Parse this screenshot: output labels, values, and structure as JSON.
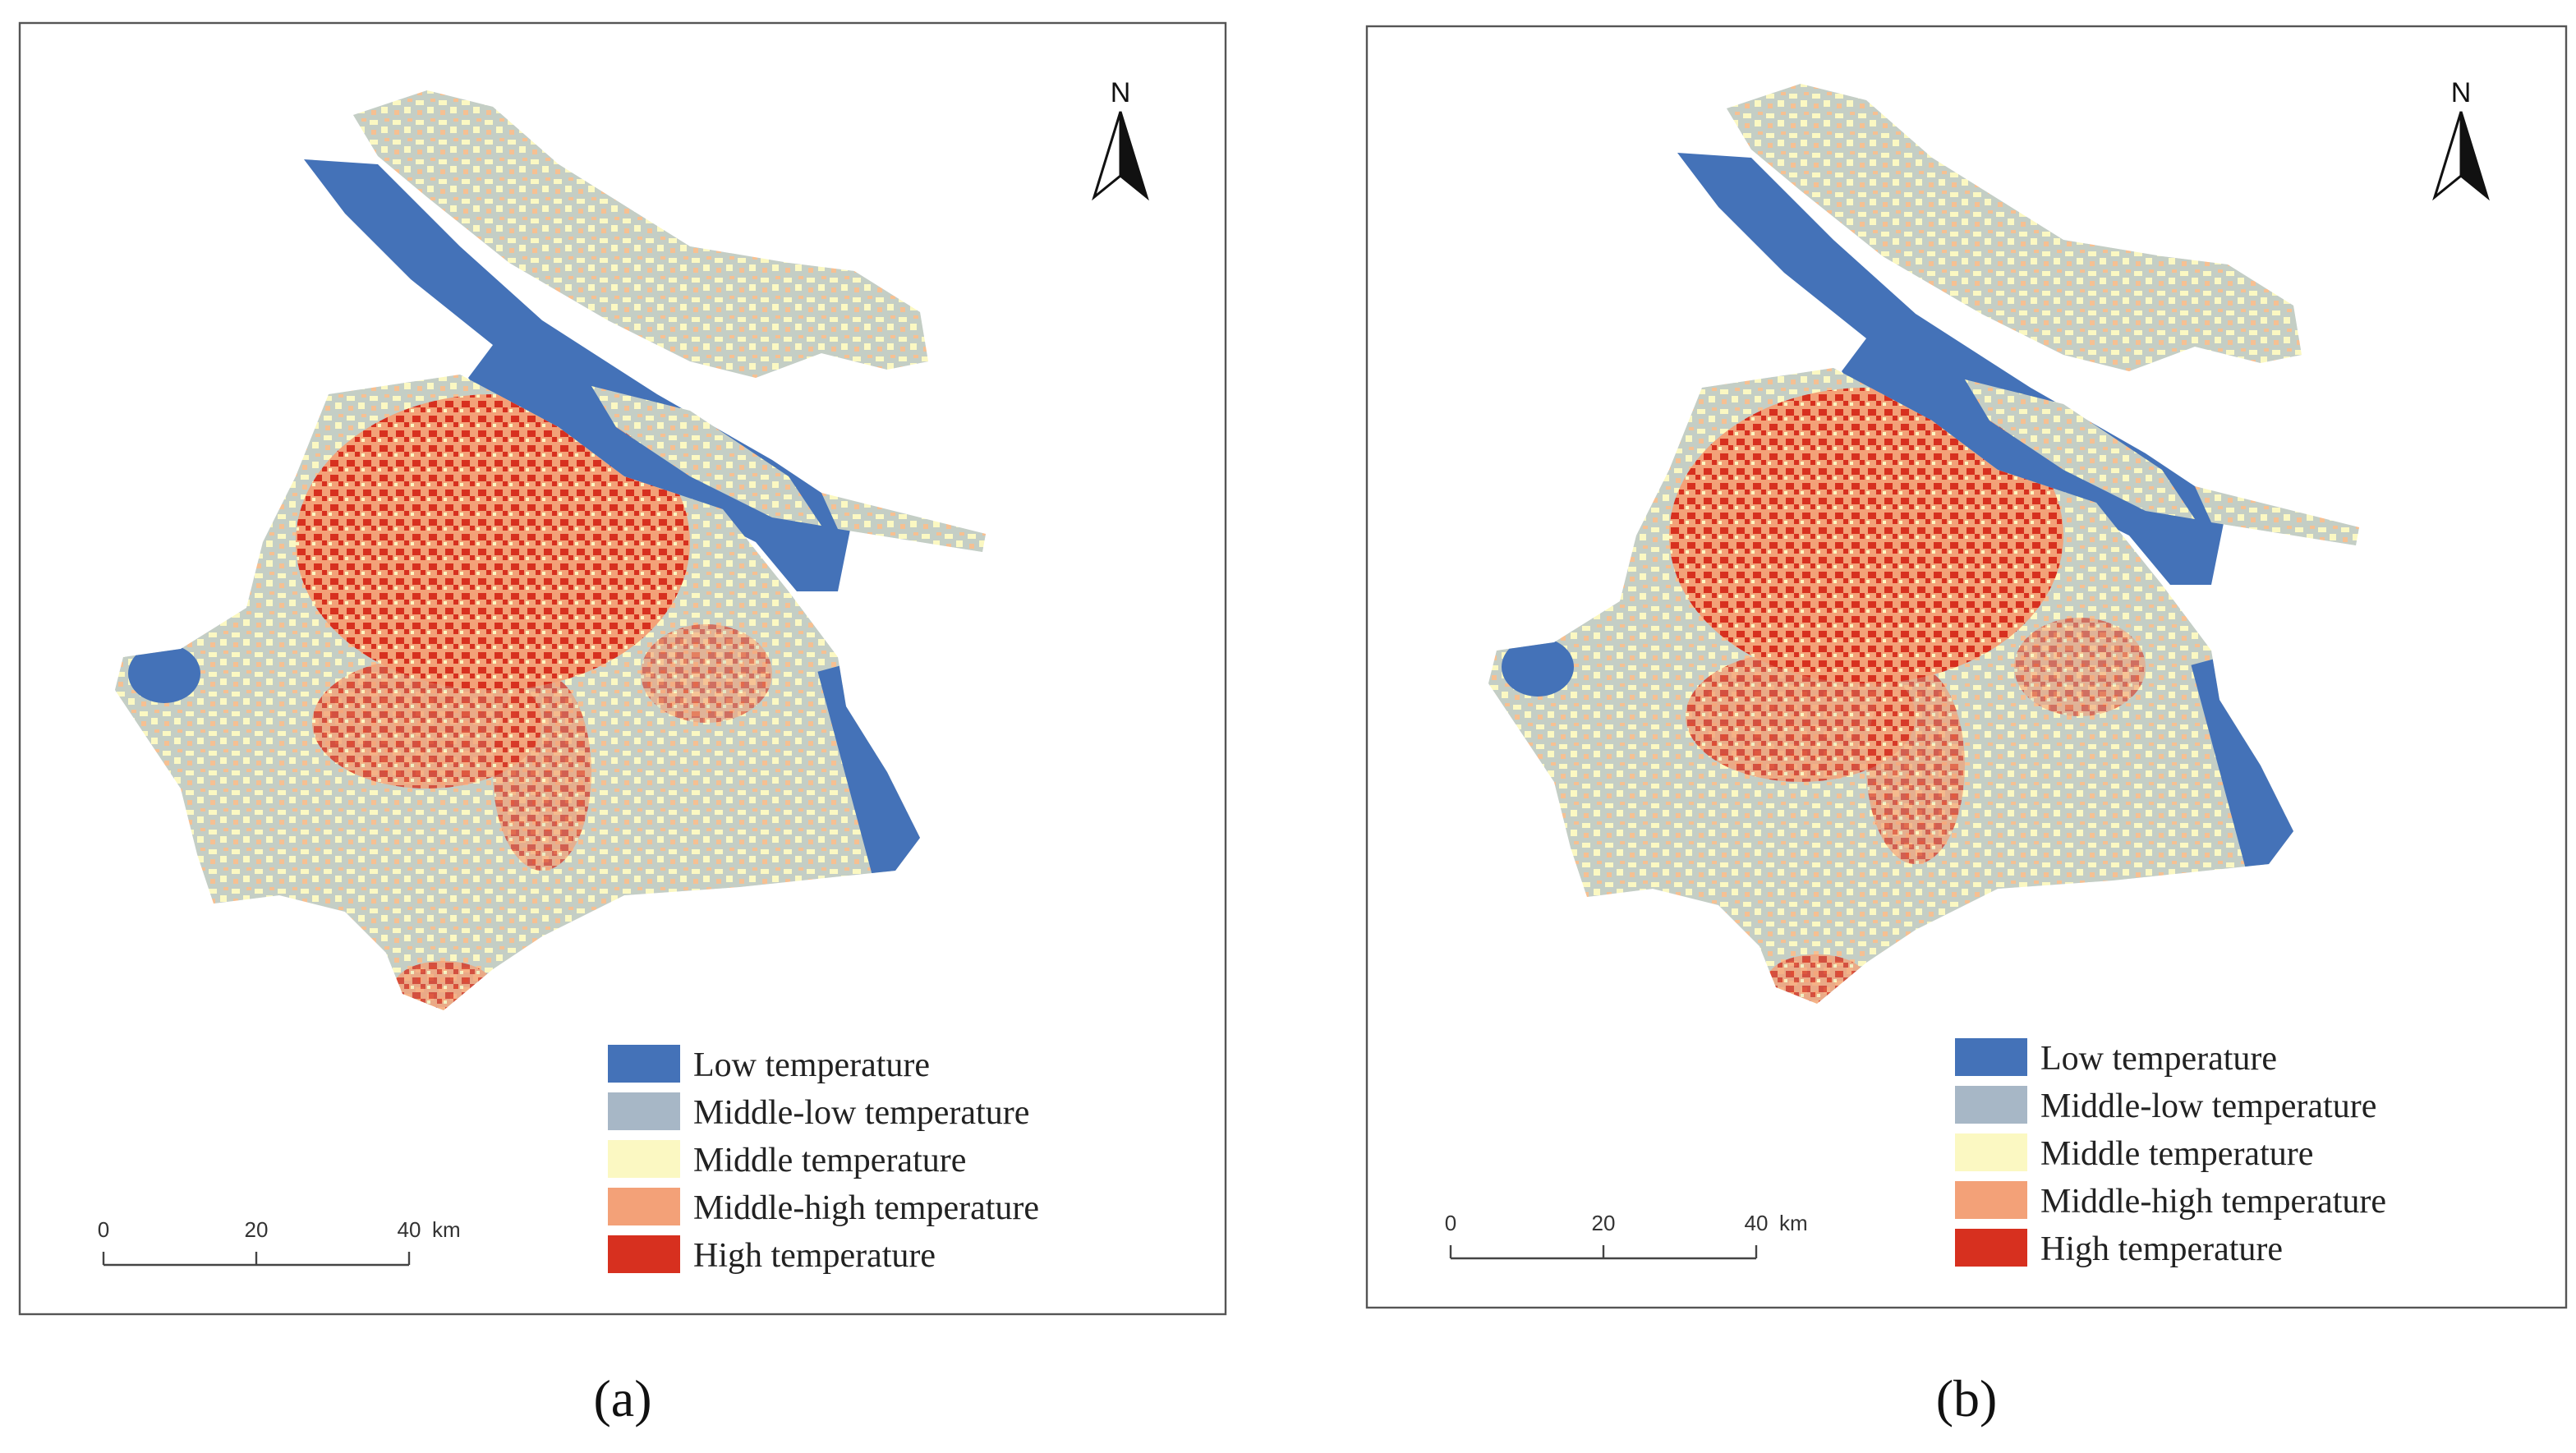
{
  "panels": [
    {
      "label": "(a)",
      "north": "N",
      "scale_bar": {
        "ticks": [
          0,
          20,
          40
        ],
        "unit": "km"
      },
      "legend": [
        {
          "label": "Low temperature",
          "color": "#4472b8"
        },
        {
          "label": "Middle-low temperature",
          "color": "#a7b7c6"
        },
        {
          "label": "Middle temperature",
          "color": "#fbf8c2"
        },
        {
          "label": "Middle-high temperature",
          "color": "#f3a178"
        },
        {
          "label": "High temperature",
          "color": "#d7301f"
        }
      ]
    },
    {
      "label": "(b)",
      "north": "N",
      "scale_bar": {
        "ticks": [
          0,
          20,
          40
        ],
        "unit": "km"
      },
      "legend": [
        {
          "label": "Low temperature",
          "color": "#4472b8"
        },
        {
          "label": "Middle-low temperature",
          "color": "#a7b7c6"
        },
        {
          "label": "Middle temperature",
          "color": "#fbf8c2"
        },
        {
          "label": "Middle-high temperature",
          "color": "#f3a178"
        },
        {
          "label": "High temperature",
          "color": "#d7301f"
        }
      ]
    }
  ]
}
